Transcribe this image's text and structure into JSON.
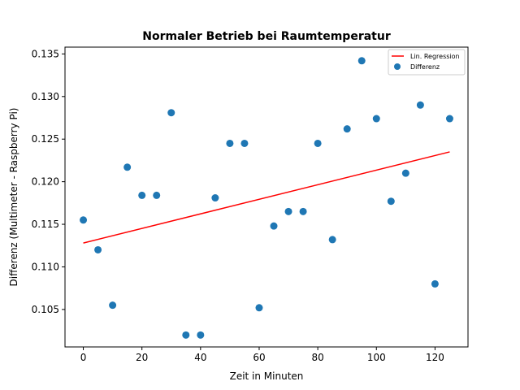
{
  "chart_data": {
    "type": "scatter",
    "title": "Normaler Betrieb bei Raumtemperatur",
    "xlabel": "Zeit in Minuten",
    "ylabel": "Differenz (Multimeter - Raspberry Pi)",
    "xlim": [
      -6.25,
      131.25
    ],
    "ylim": [
      0.1006,
      0.1358
    ],
    "xticks": [
      0,
      20,
      40,
      60,
      80,
      100,
      120
    ],
    "yticks": [
      0.105,
      0.11,
      0.115,
      0.12,
      0.125,
      0.13,
      0.135
    ],
    "ytick_labels": [
      "0.105",
      "0.110",
      "0.115",
      "0.120",
      "0.125",
      "0.130",
      "0.135"
    ],
    "grid": false,
    "legend_position": "top-right",
    "series": [
      {
        "name": "Differenz",
        "kind": "scatter",
        "color": "#1f77b4",
        "x": [
          0,
          5,
          10,
          15,
          20,
          25,
          30,
          35,
          40,
          45,
          50,
          55,
          60,
          65,
          70,
          75,
          80,
          85,
          90,
          95,
          100,
          105,
          110,
          115,
          120,
          125
        ],
        "y": [
          0.1155,
          0.112,
          0.1055,
          0.1217,
          0.1184,
          0.1184,
          0.1281,
          0.102,
          0.102,
          0.1181,
          0.1245,
          0.1245,
          0.1052,
          0.1148,
          0.1165,
          0.1165,
          0.1245,
          0.1132,
          0.1262,
          0.1342,
          0.1274,
          0.1177,
          0.121,
          0.129,
          0.108,
          0.1274
        ]
      },
      {
        "name": "Lin. Regression",
        "kind": "line",
        "color": "#ff0000",
        "x": [
          0,
          125
        ],
        "y": [
          0.1128,
          0.1235
        ]
      }
    ]
  }
}
